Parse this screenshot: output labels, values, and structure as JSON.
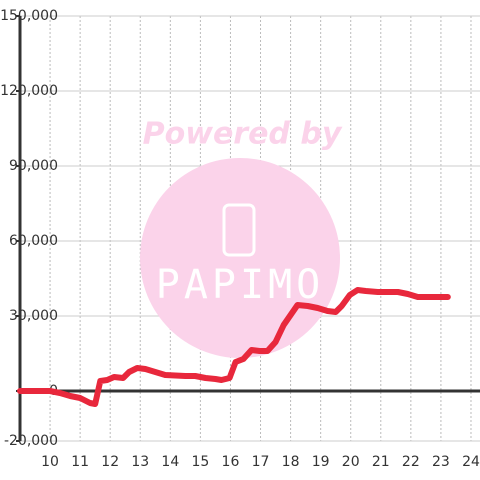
{
  "chart_data": {
    "type": "line",
    "watermark": {
      "line1": "Powered by",
      "line2": "PAPIMO"
    },
    "x": [
      9,
      10,
      10.33,
      10.67,
      11,
      11.33,
      11.5,
      11.67,
      11.9,
      12.13,
      12.43,
      12.63,
      12.9,
      13.17,
      13.5,
      13.83,
      14.5,
      14.83,
      15.17,
      15.5,
      15.7,
      15.97,
      16.17,
      16.43,
      16.7,
      16.97,
      17.23,
      17.5,
      17.77,
      18.23,
      18.57,
      18.9,
      19.23,
      19.5,
      19.7,
      19.97,
      20.23,
      20.5,
      20.9,
      21.57,
      21.9,
      22.23,
      23.23
    ],
    "series": [
      {
        "color": "#e8283c",
        "values": [
          0,
          0,
          -800,
          -2000,
          -2800,
          -4800,
          -5200,
          4000,
          4400,
          5600,
          5200,
          7600,
          9200,
          8800,
          7600,
          6400,
          6000,
          6000,
          5200,
          4800,
          4400,
          5200,
          11600,
          12800,
          16400,
          16000,
          16000,
          19600,
          26400,
          34400,
          34000,
          33200,
          32000,
          31600,
          34000,
          38400,
          40400,
          40000,
          39600,
          39600,
          38800,
          37600,
          37600
        ]
      }
    ],
    "xlim": [
      9,
      24.3
    ],
    "xticks": [
      10,
      11,
      12,
      13,
      14,
      15,
      16,
      17,
      18,
      19,
      20,
      21,
      22,
      23,
      24
    ],
    "ylim": [
      -20000,
      150000
    ],
    "yticks": [
      {
        "value": -20000,
        "label": "-20,000"
      },
      0,
      {
        "value": 30000,
        "label": "30,000"
      },
      {
        "value": 60000,
        "label": "60,000"
      },
      {
        "value": 90000,
        "label": "90,000"
      },
      {
        "value": 120000,
        "label": "120,000"
      },
      {
        "value": 150000,
        "label": "150,000"
      }
    ],
    "grid": true
  }
}
